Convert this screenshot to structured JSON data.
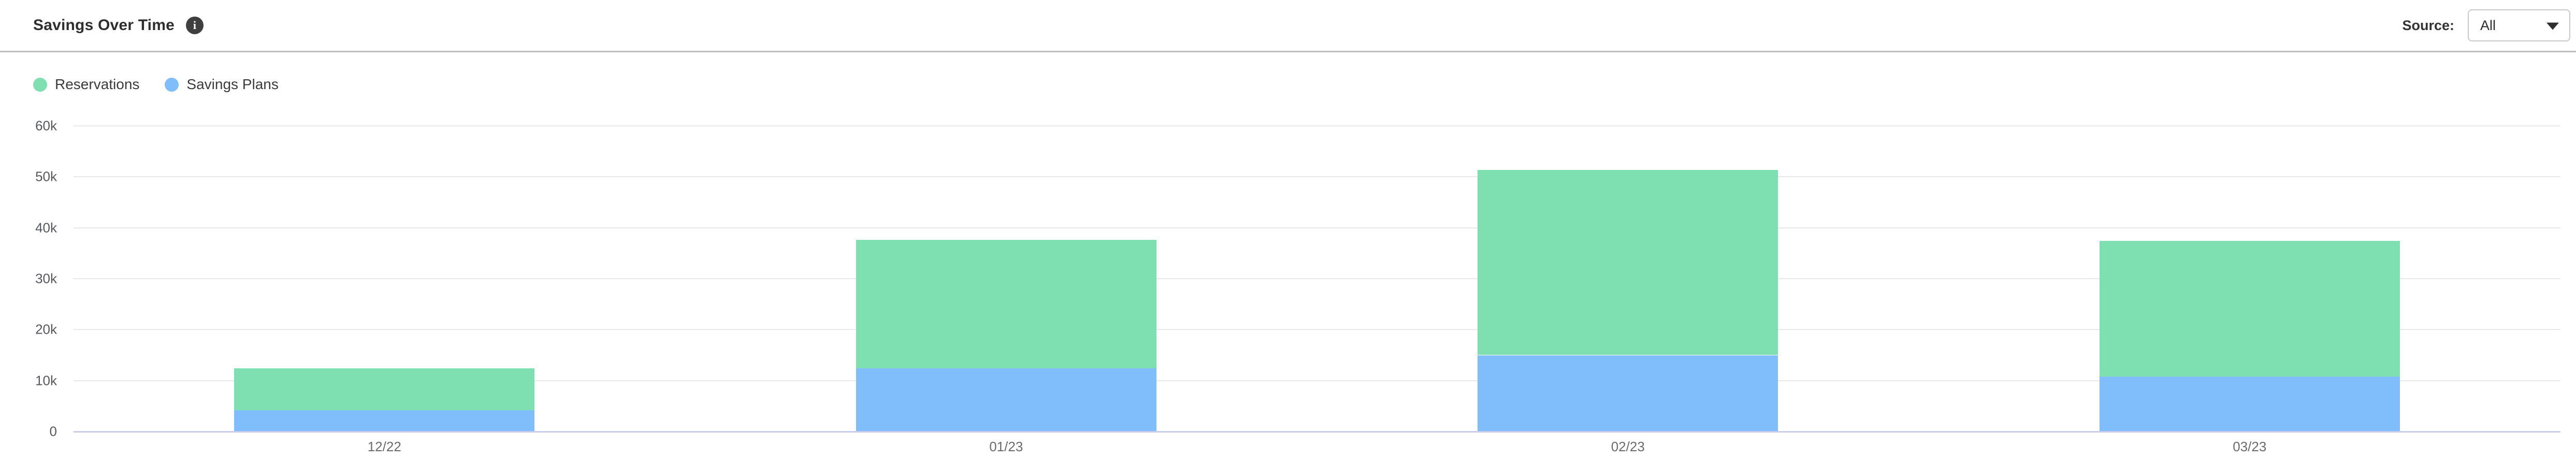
{
  "header": {
    "title": "Savings Over Time",
    "source_label": "Source:",
    "source_value": "All",
    "info_icon_glyph": "i"
  },
  "legend": [
    {
      "label": "Reservations",
      "color": "#7edfb1"
    },
    {
      "label": "Savings Plans",
      "color": "#7fbdfb"
    }
  ],
  "chart_data": {
    "type": "bar",
    "stacked": true,
    "title": "Savings Over Time",
    "categories": [
      "12/22",
      "01/23",
      "02/23",
      "03/23"
    ],
    "series": [
      {
        "name": "Reservations",
        "color": "#7edfb1",
        "values": [
          8200,
          25200,
          36400,
          26600
        ]
      },
      {
        "name": "Savings Plans",
        "color": "#7fbdfb",
        "values": [
          4200,
          12400,
          15000,
          10800
        ]
      }
    ],
    "stack_order_bottom_to_top": [
      "Savings Plans",
      "Reservations"
    ],
    "totals": [
      12400,
      37600,
      51400,
      37400
    ],
    "xlabel": "",
    "ylabel": "",
    "ylim": [
      0,
      60000
    ],
    "ytick_step": 10000,
    "ytick_labels": [
      "0",
      "10k",
      "20k",
      "30k",
      "40k",
      "50k",
      "60k"
    ],
    "grid": true,
    "grid_color": "#e8e8e8",
    "axis_line_color": "#c8cee8",
    "legend_position": "top-left"
  }
}
